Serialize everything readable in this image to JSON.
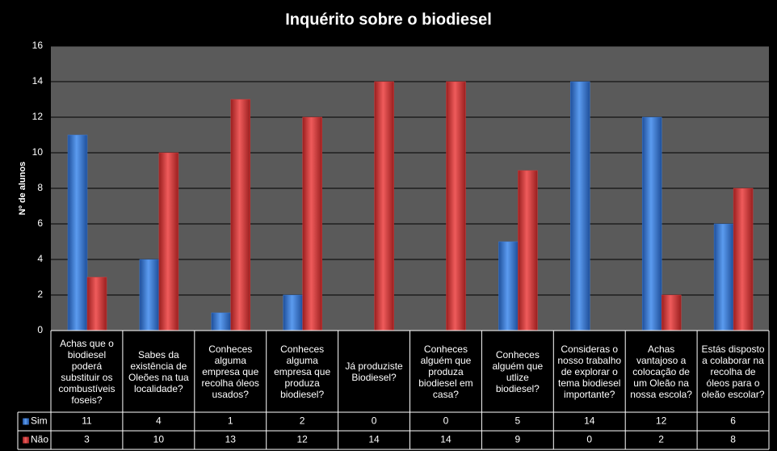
{
  "chart_data": {
    "type": "bar",
    "title": "Inquérito sobre o biodiesel",
    "y_label": "Nº de alunos",
    "categories": [
      "Achas que o biodiesel poderá substituir os combustíveis foseis?",
      "Sabes da existência de Oleões na tua localidade?",
      "Conheces alguma empresa que recolha óleos usados?",
      "Conheces alguma empresa que produza biodiesel?",
      "Já produziste Biodiesel?",
      "Conheces alguém que produza biodiesel em casa?",
      "Conheces alguém que utlize biodiesel?",
      "Consideras o nosso trabalho de explorar o tema biodiesel importante?",
      "Achas vantajoso a colocação de um Oleão na nossa escola?",
      "Estás disposto a colaborar na recolha de óleos para o oleão escolar?"
    ],
    "series": [
      {
        "name": "Sim",
        "color": "#3b7dd8",
        "values": [
          11,
          4,
          1,
          2,
          0,
          0,
          5,
          14,
          12,
          6
        ]
      },
      {
        "name": "Não",
        "color": "#d83b3b",
        "values": [
          3,
          10,
          13,
          12,
          14,
          14,
          9,
          0,
          2,
          8
        ]
      }
    ],
    "ylim": [
      0,
      16
    ],
    "yticks": [
      0,
      2,
      4,
      6,
      8,
      10,
      12,
      14,
      16
    ],
    "grid": true,
    "data_table": true
  }
}
